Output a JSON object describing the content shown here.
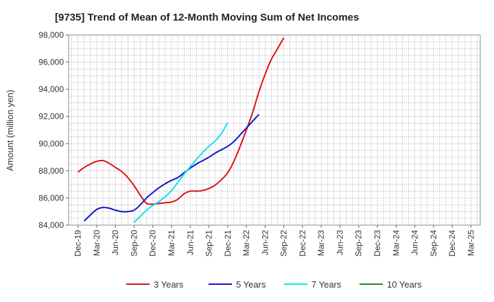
{
  "chart_data": {
    "type": "line",
    "title": "[9735]  Trend of Mean of 12-Month Moving Sum of Net Incomes",
    "xlabel": "",
    "ylabel": "Amount (million yen)",
    "ylim": [
      84000,
      98000
    ],
    "y_ticks": [
      84000,
      86000,
      88000,
      90000,
      92000,
      94000,
      96000,
      98000
    ],
    "y_tick_labels": [
      "84,000",
      "86,000",
      "88,000",
      "90,000",
      "92,000",
      "94,000",
      "96,000",
      "98,000"
    ],
    "x_tick_labels": [
      "Dec-19",
      "Mar-20",
      "Jun-20",
      "Sep-20",
      "Dec-20",
      "Mar-21",
      "Jun-21",
      "Sep-21",
      "Dec-21",
      "Mar-22",
      "Jun-22",
      "Sep-22",
      "Dec-22",
      "Mar-23",
      "Jun-23",
      "Sep-23",
      "Dec-23",
      "Mar-24",
      "Jun-24",
      "Sep-24",
      "Dec-24",
      "Mar-25"
    ],
    "grid": true,
    "legend_position": "bottom",
    "series": [
      {
        "name": "3 Years",
        "color": "#dd1111",
        "start_index": 0,
        "values": [
          87900,
          88250,
          88500,
          88700,
          88750,
          88550,
          88250,
          87950,
          87500,
          86900,
          86200,
          85600,
          85550,
          85600,
          85650,
          85700,
          85900,
          86300,
          86500,
          86500,
          86550,
          86700,
          86950,
          87350,
          87850,
          88700,
          89800,
          91000,
          92300,
          93800,
          95100,
          96200,
          97000,
          97800
        ]
      },
      {
        "name": "5 Years",
        "color": "#1111cc",
        "start_index": 1,
        "values": [
          84300,
          84750,
          85150,
          85300,
          85250,
          85100,
          85000,
          85000,
          85100,
          85500,
          86000,
          86400,
          86750,
          87050,
          87300,
          87500,
          87850,
          88200,
          88500,
          88750,
          89000,
          89300,
          89550,
          89800,
          90150,
          90650,
          91150,
          91650,
          92150
        ]
      },
      {
        "name": "7 Years",
        "color": "#11e0ee",
        "start_index": 9,
        "values": [
          84200,
          84650,
          85100,
          85450,
          85750,
          86100,
          86550,
          87150,
          87750,
          88300,
          88850,
          89350,
          89800,
          90200,
          90750,
          91550
        ]
      },
      {
        "name": "10 Years",
        "color": "#228822",
        "start_index": 0,
        "values": []
      }
    ]
  }
}
